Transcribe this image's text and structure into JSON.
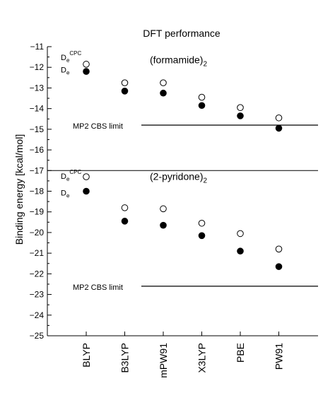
{
  "chart_data": {
    "type": "scatter",
    "title": "DFT performance",
    "ylabel": "Binding energy  [kcal/mol]",
    "ylim": [
      -25,
      -11
    ],
    "yticks": [
      -11,
      -12,
      -13,
      -14,
      -15,
      -16,
      -17,
      -18,
      -19,
      -20,
      -21,
      -22,
      -23,
      -24,
      -25
    ],
    "categories": [
      "BLYP",
      "B3LYP",
      "mPW91",
      "X3LYP",
      "PBE",
      "PW91"
    ],
    "panels": [
      {
        "label": "(formamide)",
        "label_sub": "2",
        "reference_label": "MP2 CBS limit",
        "reference_value": -14.8,
        "series": [
          {
            "name": "De",
            "marker": "open",
            "values": [
              -11.85,
              -12.75,
              -12.75,
              -13.45,
              -13.95,
              -14.45
            ]
          },
          {
            "name": "De",
            "marker": "filled",
            "values": [
              -12.2,
              -13.15,
              -13.25,
              -13.85,
              -14.35,
              -14.95
            ]
          }
        ],
        "legend": {
          "cpc_main": "D",
          "cpc_sub": "e",
          "cpc_sup": "CPC",
          "plain_main": "D",
          "plain_sub": "e"
        }
      },
      {
        "label": "(2-pyridone)",
        "label_sub": "2",
        "reference_label": "MP2 CBS limit",
        "reference_value": -22.6,
        "series": [
          {
            "name": "De",
            "marker": "open",
            "values": [
              -17.3,
              -18.8,
              -18.85,
              -19.55,
              -20.05,
              -20.8
            ]
          },
          {
            "name": "De",
            "marker": "filled",
            "values": [
              -18.0,
              -19.45,
              -19.65,
              -20.15,
              -20.9,
              -21.65
            ]
          }
        ],
        "legend": {
          "cpc_main": "D",
          "cpc_sub": "e",
          "cpc_sup": "CPC",
          "plain_main": "D",
          "plain_sub": "e"
        }
      }
    ],
    "divider_value": -17.0,
    "grid": false
  }
}
